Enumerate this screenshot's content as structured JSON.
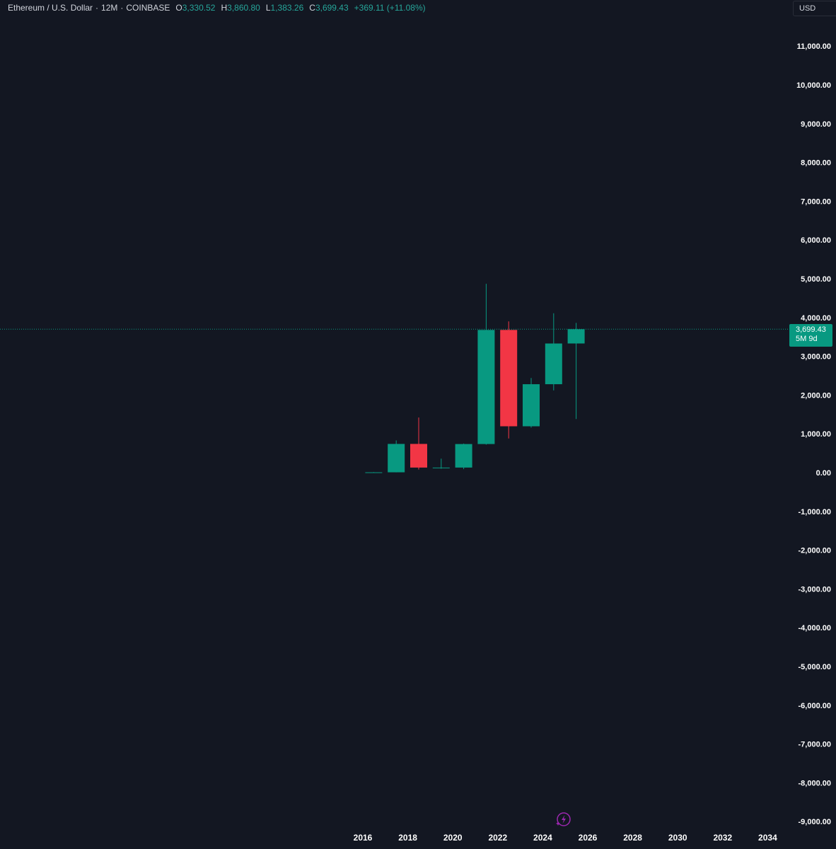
{
  "legend": {
    "symbol": "Ethereum / U.S. Dollar",
    "interval": "12M",
    "exchange": "COINBASE",
    "open_key": "O",
    "open": "3,330.52",
    "high_key": "H",
    "high": "3,860.80",
    "low_key": "L",
    "low": "1,383.26",
    "close_key": "C",
    "close": "3,699.43",
    "change": "+369.11 (+11.08%)"
  },
  "price_axis": {
    "currency": "USD",
    "last_price": "3,699.43",
    "countdown": "5M 9d"
  },
  "colors": {
    "background": "#131722",
    "up": "#089981",
    "down": "#f23645",
    "text": "#d1d4dc",
    "axis_text": "#ffffff",
    "price_line": "#089981",
    "lightning": "#9c27b0"
  },
  "icons": {
    "lightning": "lightning-bolt-icon"
  },
  "chart_data": {
    "type": "candlestick",
    "interval": "12M",
    "ylim": [
      -9500,
      11500
    ],
    "xlim": [
      2014.5,
      2035.0
    ],
    "yticks": [
      11000,
      10000,
      9000,
      8000,
      7000,
      6000,
      5000,
      4000,
      3000,
      2000,
      1000,
      0,
      -1000,
      -2000,
      -3000,
      -4000,
      -5000,
      -6000,
      -7000,
      -8000,
      -9000
    ],
    "ytick_labels": [
      "11,000.00",
      "10,000.00",
      "9,000.00",
      "8,000.00",
      "7,000.00",
      "6,000.00",
      "5,000.00",
      "4,000.00",
      "3,000.00",
      "2,000.00",
      "1,000.00",
      "0.00",
      "-1,000.00",
      "-2,000.00",
      "-3,000.00",
      "-4,000.00",
      "-5,000.00",
      "-6,000.00",
      "-7,000.00",
      "-8,000.00",
      "-9,000.00"
    ],
    "xticks": [
      2016,
      2018,
      2020,
      2022,
      2024,
      2026,
      2028,
      2030,
      2032,
      2034
    ],
    "xtick_labels": [
      "2016",
      "2018",
      "2020",
      "2022",
      "2024",
      "2026",
      "2028",
      "2030",
      "2032",
      "2034"
    ],
    "last_price": 3699.43,
    "candles": [
      {
        "year": 2016,
        "open": 1,
        "high": 14,
        "low": 1,
        "close": 8
      },
      {
        "year": 2017,
        "open": 8,
        "high": 830,
        "low": 7,
        "close": 740
      },
      {
        "year": 2018,
        "open": 740,
        "high": 1420,
        "low": 80,
        "close": 130
      },
      {
        "year": 2019,
        "open": 130,
        "high": 360,
        "low": 100,
        "close": 130
      },
      {
        "year": 2020,
        "open": 130,
        "high": 750,
        "low": 90,
        "close": 737
      },
      {
        "year": 2021,
        "open": 737,
        "high": 4870,
        "low": 720,
        "close": 3680
      },
      {
        "year": 2022,
        "open": 3680,
        "high": 3900,
        "low": 880,
        "close": 1195
      },
      {
        "year": 2023,
        "open": 1195,
        "high": 2440,
        "low": 1160,
        "close": 2280
      },
      {
        "year": 2024,
        "open": 2280,
        "high": 4110,
        "low": 2120,
        "close": 3330
      },
      {
        "year": 2025,
        "open": 3330.52,
        "high": 3860.8,
        "low": 1383.26,
        "close": 3699.43
      }
    ]
  }
}
